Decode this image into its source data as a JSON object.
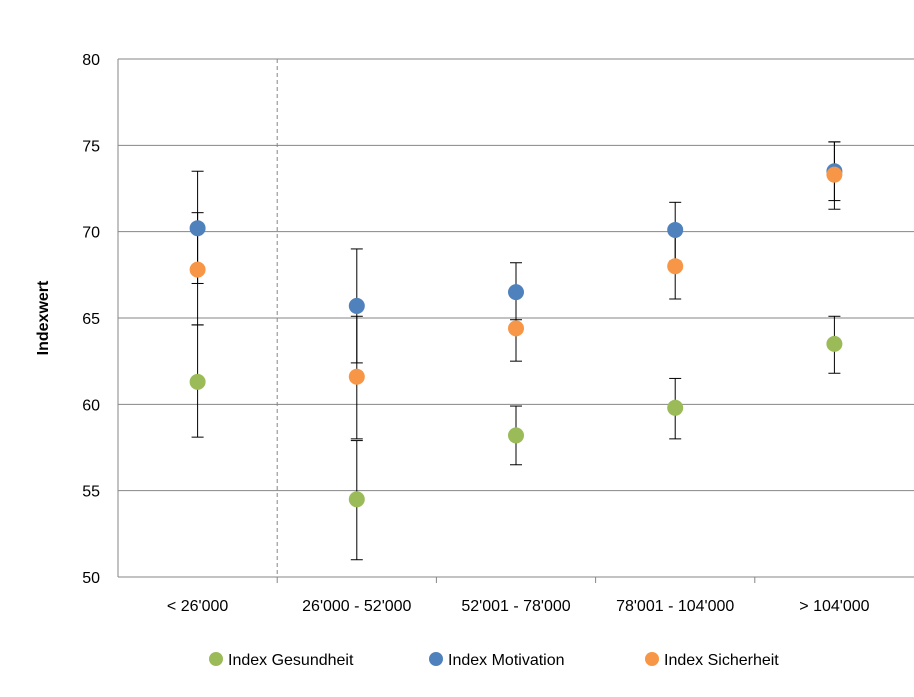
{
  "chart_data": {
    "type": "scatter",
    "title": "",
    "xlabel": "",
    "ylabel": "Indexwert",
    "ylim": [
      50,
      80
    ],
    "yticks": [
      "50",
      "55",
      "60",
      "65",
      "70",
      "75",
      "80"
    ],
    "categories": [
      "< 26'000",
      "26'000 - 52'000",
      "52'001 - 78'000",
      "78'001 - 104'000",
      "> 104'000"
    ],
    "grid": true,
    "legend_position": "bottom",
    "series": [
      {
        "name": "Index Gesundheit",
        "color": "#9bbb59",
        "values": [
          61.3,
          54.5,
          58.2,
          59.8,
          63.5
        ],
        "error_low": [
          58.1,
          51.0,
          56.5,
          58.0,
          61.8
        ],
        "error_high": [
          64.6,
          57.9,
          59.9,
          61.5,
          65.1
        ]
      },
      {
        "name": "Index Motivation",
        "color": "#4f81bd",
        "values": [
          70.2,
          65.7,
          66.5,
          70.1,
          73.5
        ],
        "error_low": [
          67.0,
          62.4,
          64.9,
          68.3,
          71.8
        ],
        "error_high": [
          73.5,
          69.0,
          68.2,
          71.7,
          75.2
        ]
      },
      {
        "name": "Index Sicherheit",
        "color": "#f79646",
        "values": [
          67.8,
          61.6,
          64.4,
          68.0,
          73.3
        ],
        "error_low": [
          64.6,
          58.0,
          62.5,
          66.1,
          71.3
        ],
        "error_high": [
          71.1,
          65.1,
          66.3,
          69.9,
          75.2
        ]
      }
    ]
  }
}
